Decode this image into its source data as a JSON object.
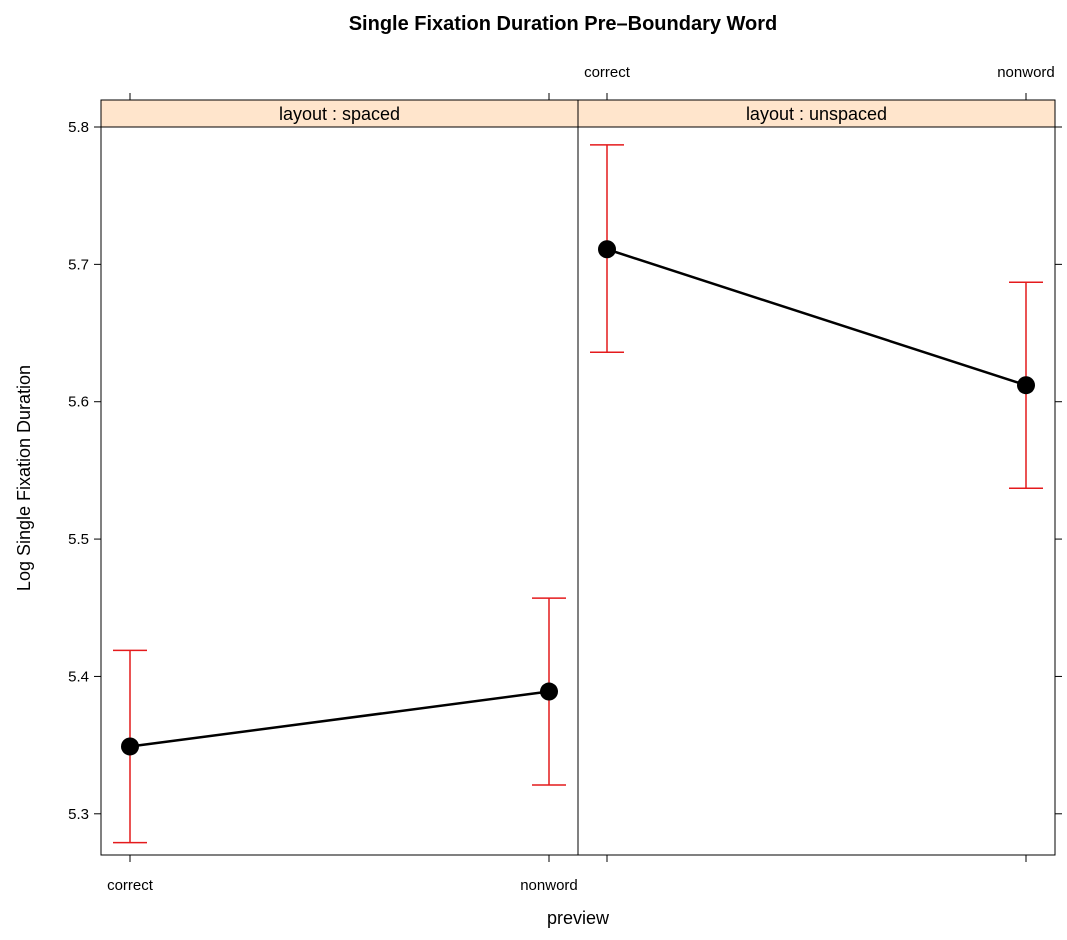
{
  "chart_data": {
    "type": "line",
    "title": "Single Fixation Duration Pre–Boundary Word",
    "xlabel": "preview",
    "ylabel": "Log Single Fixation Duration",
    "categories": [
      "correct",
      "nonword"
    ],
    "ylim": [
      5.27,
      5.8
    ],
    "yticks": [
      "5.3",
      "5.4",
      "5.5",
      "5.6",
      "5.7",
      "5.8"
    ],
    "grid": false,
    "colors": {
      "line": "#000000",
      "error_bar": "#e41a1c",
      "strip": "#ffe5cc",
      "point": "#000000"
    },
    "panels": [
      {
        "strip": "layout : spaced",
        "values": [
          5.349,
          5.389
        ],
        "lower": [
          5.279,
          5.321
        ],
        "upper": [
          5.419,
          5.457
        ]
      },
      {
        "strip": "layout : unspaced",
        "values": [
          5.711,
          5.612
        ],
        "lower": [
          5.636,
          5.537
        ],
        "upper": [
          5.787,
          5.687
        ]
      }
    ]
  }
}
